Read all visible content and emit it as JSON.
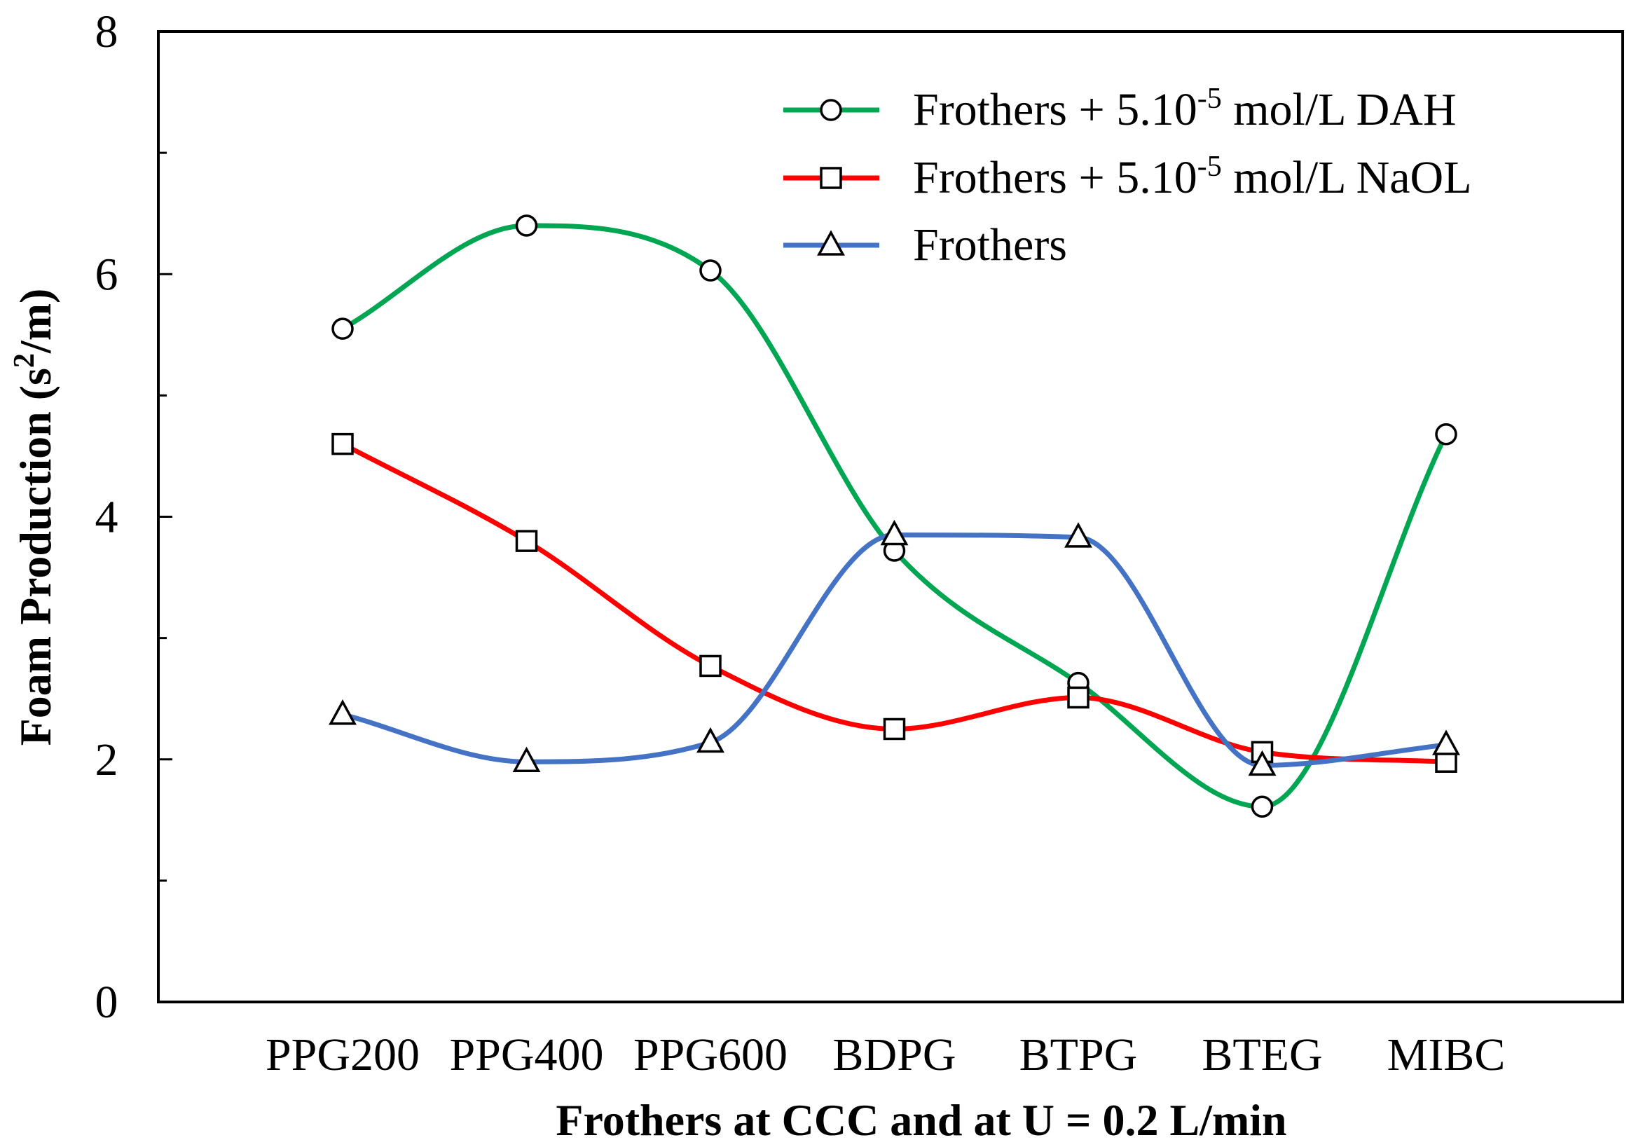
{
  "chart_data": {
    "type": "line",
    "smooth": true,
    "xlabel": "Frothers at CCC and at U = 0.2 L/min",
    "ylabel_main": "Foam Production (s",
    "ylabel_sup": "2",
    "ylabel_end": "/m)",
    "ylim": [
      0,
      8
    ],
    "y_ticks": [
      0,
      2,
      4,
      6,
      8
    ],
    "y_tick_labels": [
      "0",
      "2",
      "4",
      "6",
      "8"
    ],
    "y_minor_ticks": [
      1,
      3,
      5,
      7
    ],
    "categories": [
      "PPG200",
      "PPG400",
      "PPG600",
      "BDPG",
      "BTPG",
      "BTEG",
      "MIBC"
    ],
    "grid": false,
    "legend_position": "top-right",
    "series": [
      {
        "name_pre": "Frothers + 5.10",
        "name_sup": "-5",
        "name_post": " mol/L DAH",
        "color": "#00a651",
        "marker": "circle",
        "values": [
          5.55,
          6.4,
          6.03,
          3.72,
          2.63,
          1.61,
          4.68
        ]
      },
      {
        "name_pre": "Frothers + 5.10",
        "name_sup": "-5",
        "name_post": " mol/L NaOL",
        "color": "#ff0000",
        "marker": "square",
        "values": [
          4.6,
          3.8,
          2.77,
          2.25,
          2.51,
          2.06,
          1.98
        ]
      },
      {
        "name_pre": "Frothers",
        "name_sup": "",
        "name_post": "",
        "color": "#4472c4",
        "marker": "triangle",
        "values": [
          2.37,
          1.98,
          2.14,
          3.85,
          3.83,
          1.95,
          2.12
        ]
      }
    ]
  }
}
